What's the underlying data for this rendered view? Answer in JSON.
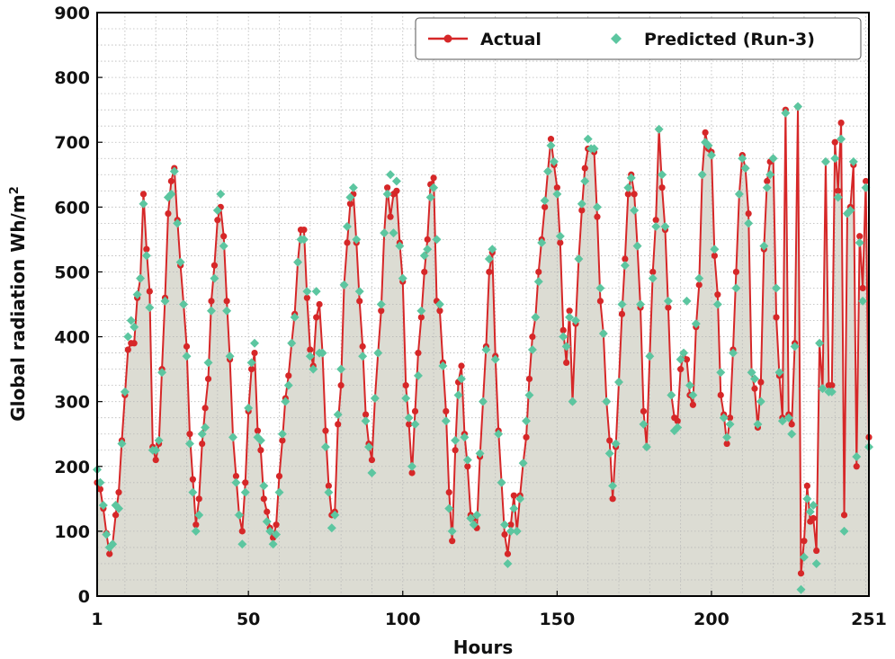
{
  "chart_data": {
    "type": "line",
    "xlabel": "Hours",
    "ylabel": "Global radiation Wh/m",
    "ylabel_superscript": "2",
    "xlim": [
      1,
      251
    ],
    "ylim": [
      0,
      900
    ],
    "x_ticks": [
      1,
      50,
      100,
      150,
      200,
      251
    ],
    "y_ticks": [
      0,
      100,
      200,
      300,
      400,
      500,
      600,
      700,
      800,
      900
    ],
    "grid": true,
    "legend_position": "top-right",
    "colors": {
      "actual": "#d62728",
      "predicted": "#5cc6a0",
      "fill": "#dcdcd3",
      "grid": "#b8b8b8"
    },
    "series": [
      {
        "name": "Actual",
        "style": "line-circle",
        "values": [
          175,
          165,
          135,
          97,
          65,
          80,
          125,
          160,
          240,
          310,
          380,
          390,
          390,
          460,
          490,
          620,
          535,
          470,
          230,
          210,
          235,
          350,
          460,
          590,
          640,
          660,
          580,
          510,
          450,
          385,
          250,
          180,
          110,
          150,
          235,
          290,
          335,
          455,
          510,
          580,
          600,
          555,
          455,
          365,
          245,
          185,
          125,
          100,
          175,
          285,
          350,
          375,
          255,
          225,
          150,
          130,
          105,
          90,
          110,
          185,
          240,
          305,
          340,
          390,
          435,
          515,
          565,
          565,
          460,
          380,
          355,
          430,
          450,
          375,
          255,
          170,
          125,
          130,
          265,
          325,
          480,
          545,
          605,
          620,
          545,
          455,
          385,
          280,
          235,
          210,
          305,
          375,
          440,
          560,
          630,
          585,
          620,
          625,
          545,
          485,
          325,
          265,
          190,
          285,
          375,
          430,
          500,
          550,
          635,
          645,
          455,
          440,
          360,
          285,
          160,
          85,
          225,
          330,
          355,
          250,
          200,
          125,
          120,
          105,
          215,
          300,
          385,
          500,
          530,
          370,
          255,
          175,
          95,
          65,
          110,
          155,
          100,
          155,
          205,
          245,
          335,
          400,
          430,
          500,
          550,
          600,
          655,
          705,
          665,
          630,
          545,
          410,
          360,
          440,
          300,
          420,
          520,
          595,
          660,
          690,
          690,
          685,
          585,
          455,
          405,
          300,
          240,
          150,
          230,
          330,
          435,
          520,
          620,
          650,
          620,
          540,
          445,
          285,
          230,
          370,
          500,
          580,
          720,
          630,
          565,
          445,
          310,
          275,
          270,
          350,
          375,
          365,
          310,
          295,
          415,
          480,
          650,
          715,
          690,
          685,
          525,
          465,
          310,
          280,
          235,
          275,
          380,
          500,
          620,
          680,
          660,
          590,
          345,
          320,
          260,
          330,
          535,
          640,
          670,
          675,
          430,
          340,
          275,
          750,
          280,
          265,
          390,
          755,
          35,
          85,
          170,
          115,
          120,
          70,
          390,
          320,
          670,
          325,
          325,
          700,
          625,
          730,
          125,
          590,
          600,
          665,
          200,
          555,
          475,
          640,
          245
        ]
      },
      {
        "name": "Predicted (Run-3)",
        "style": "marker-diamond",
        "values": [
          195,
          175,
          140,
          95,
          75,
          80,
          140,
          135,
          235,
          315,
          400,
          425,
          415,
          465,
          490,
          605,
          525,
          445,
          225,
          225,
          240,
          345,
          455,
          615,
          620,
          655,
          575,
          515,
          450,
          370,
          235,
          160,
          100,
          125,
          250,
          260,
          360,
          440,
          490,
          595,
          620,
          540,
          440,
          370,
          245,
          175,
          125,
          80,
          160,
          290,
          360,
          390,
          245,
          240,
          170,
          115,
          100,
          80,
          95,
          160,
          250,
          300,
          325,
          390,
          430,
          515,
          550,
          550,
          470,
          370,
          350,
          470,
          375,
          375,
          230,
          160,
          105,
          125,
          280,
          350,
          480,
          570,
          615,
          630,
          550,
          470,
          370,
          270,
          230,
          190,
          305,
          375,
          450,
          560,
          620,
          650,
          560,
          640,
          540,
          490,
          305,
          275,
          200,
          265,
          340,
          440,
          525,
          535,
          615,
          630,
          550,
          450,
          355,
          270,
          135,
          100,
          240,
          310,
          335,
          245,
          210,
          120,
          110,
          125,
          220,
          300,
          380,
          520,
          535,
          365,
          250,
          175,
          110,
          50,
          100,
          135,
          100,
          150,
          205,
          270,
          310,
          380,
          430,
          485,
          545,
          610,
          655,
          695,
          670,
          620,
          555,
          400,
          385,
          430,
          300,
          425,
          520,
          605,
          640,
          705,
          690,
          690,
          600,
          475,
          405,
          300,
          220,
          170,
          235,
          330,
          450,
          510,
          630,
          645,
          595,
          540,
          450,
          265,
          230,
          370,
          490,
          570,
          720,
          650,
          570,
          455,
          310,
          255,
          260,
          365,
          375,
          455,
          325,
          310,
          420,
          490,
          650,
          700,
          695,
          680,
          535,
          450,
          345,
          275,
          245,
          265,
          375,
          475,
          620,
          675,
          660,
          575,
          345,
          335,
          265,
          300,
          540,
          630,
          650,
          675,
          475,
          345,
          270,
          745,
          275,
          250,
          385,
          755,
          10,
          60,
          150,
          130,
          140,
          50,
          390,
          320,
          670,
          315,
          315,
          675,
          615,
          705,
          100,
          590,
          595,
          670,
          215,
          545,
          455,
          630,
          230
        ]
      }
    ]
  }
}
